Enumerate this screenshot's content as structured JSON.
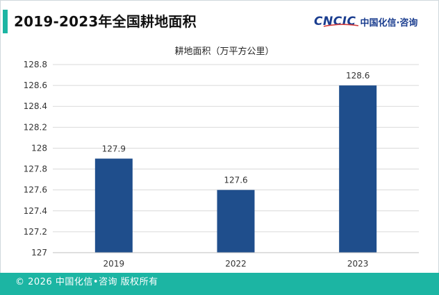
{
  "header": {
    "title": "2019-2023年全国耕地面积",
    "logo_mark": "CNCIC",
    "logo_text": "中国化信·咨询"
  },
  "footer": {
    "text": "© 2026 中国化信•咨询 版权所有"
  },
  "colors": {
    "accent": "#1cb5a3",
    "bar": "#1f4e8c",
    "brand": "#1a3d8f"
  },
  "chart_data": {
    "type": "bar",
    "title": "耕地面积（万平方公里）",
    "categories": [
      "2019",
      "2022",
      "2023"
    ],
    "values": [
      127.9,
      127.6,
      128.6
    ],
    "data_labels": [
      "127.9",
      "127.6",
      "128.6"
    ],
    "ylim": [
      127,
      128.8
    ],
    "yticks": [
      "127",
      "127.2",
      "127.4",
      "127.6",
      "127.8",
      "128",
      "128.2",
      "128.4",
      "128.6",
      "128.8"
    ],
    "grid": true,
    "legend": "none"
  }
}
